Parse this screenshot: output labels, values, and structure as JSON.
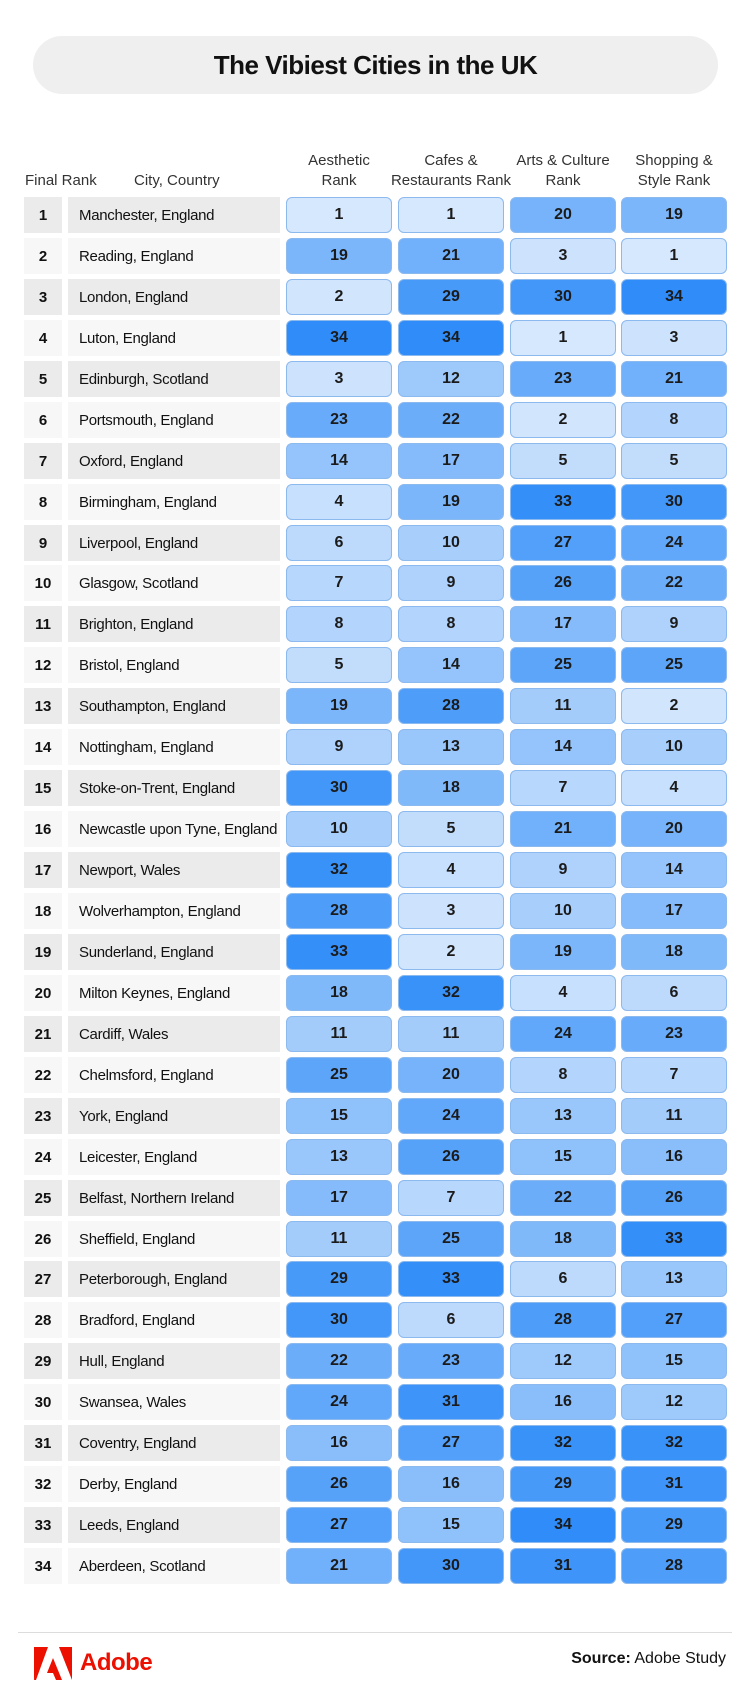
{
  "title": "The Vibiest Cities in the UK",
  "headers": {
    "final_rank": "Final Rank",
    "city": "City, Country",
    "aesthetic": [
      "Aesthetic",
      "Rank"
    ],
    "cafes": [
      "Cafes &",
      "Restaurants Rank"
    ],
    "arts": [
      "Arts & Culture",
      "Rank"
    ],
    "shopping": [
      "Shopping &",
      "Style Rank"
    ]
  },
  "footer": {
    "brand": "Adobe",
    "source_label": "Source:",
    "source_value": "Adobe Study"
  },
  "colors": {
    "lightest": "#d6e8fd",
    "darkest": "#2f8cf8"
  },
  "chart_data": {
    "type": "table",
    "title": "The Vibiest Cities in the UK",
    "columns": [
      "Final Rank",
      "City, Country",
      "Aesthetic Rank",
      "Cafes & Restaurants Rank",
      "Arts & Culture Rank",
      "Shopping & Style Rank"
    ],
    "rows": [
      {
        "rank": "1",
        "city": "Manchester, England",
        "values": [
          1,
          1,
          20,
          19
        ]
      },
      {
        "rank": "2",
        "city": "Reading, England",
        "values": [
          19,
          21,
          3,
          1
        ]
      },
      {
        "rank": "3",
        "city": "London, England",
        "values": [
          2,
          29,
          30,
          34
        ]
      },
      {
        "rank": "4",
        "city": "Luton, England",
        "values": [
          34,
          34,
          1,
          3
        ]
      },
      {
        "rank": "5",
        "city": "Edinburgh, Scotland",
        "values": [
          3,
          12,
          23,
          21
        ]
      },
      {
        "rank": "6",
        "city": "Portsmouth, England",
        "values": [
          23,
          22,
          2,
          8
        ]
      },
      {
        "rank": "7",
        "city": "Oxford, England",
        "values": [
          14,
          17,
          5,
          5
        ]
      },
      {
        "rank": "8",
        "city": "Birmingham, England",
        "values": [
          4,
          19,
          33,
          30
        ]
      },
      {
        "rank": "9",
        "city": "Liverpool, England",
        "values": [
          6,
          10,
          27,
          24
        ]
      },
      {
        "rank": "10",
        "city": "Glasgow, Scotland",
        "values": [
          7,
          9,
          26,
          22
        ]
      },
      {
        "rank": "11",
        "city": "Brighton, England",
        "values": [
          8,
          8,
          17,
          9
        ]
      },
      {
        "rank": "12",
        "city": "Bristol, England",
        "values": [
          5,
          14,
          25,
          25
        ]
      },
      {
        "rank": "13",
        "city": "Southampton, England",
        "values": [
          19,
          28,
          11,
          2
        ]
      },
      {
        "rank": "14",
        "city": "Nottingham, England",
        "values": [
          9,
          13,
          14,
          10
        ]
      },
      {
        "rank": "15",
        "city": "Stoke-on-Trent, England",
        "values": [
          30,
          18,
          7,
          4
        ]
      },
      {
        "rank": "16",
        "city": "Newcastle upon Tyne, England",
        "values": [
          10,
          5,
          21,
          20
        ]
      },
      {
        "rank": "17",
        "city": "Newport, Wales",
        "values": [
          32,
          4,
          9,
          14
        ]
      },
      {
        "rank": "18",
        "city": "Wolverhampton, England",
        "values": [
          28,
          3,
          10,
          17
        ]
      },
      {
        "rank": "19",
        "city": "Sunderland, England",
        "values": [
          33,
          2,
          19,
          18
        ]
      },
      {
        "rank": "20",
        "city": "Milton Keynes, England",
        "values": [
          18,
          32,
          4,
          6
        ]
      },
      {
        "rank": "21",
        "city": "Cardiff, Wales",
        "values": [
          11,
          11,
          24,
          23
        ]
      },
      {
        "rank": "22",
        "city": "Chelmsford, England",
        "values": [
          25,
          20,
          8,
          7
        ]
      },
      {
        "rank": "23",
        "city": "York, England",
        "values": [
          15,
          24,
          13,
          11
        ]
      },
      {
        "rank": "24",
        "city": "Leicester, England",
        "values": [
          13,
          26,
          15,
          16
        ]
      },
      {
        "rank": "25",
        "city": "Belfast, Northern Ireland",
        "values": [
          17,
          7,
          22,
          26
        ]
      },
      {
        "rank": "26",
        "city": "Sheffield, England",
        "values": [
          11,
          25,
          18,
          33
        ]
      },
      {
        "rank": "27",
        "city": "Peterborough, England",
        "values": [
          29,
          33,
          6,
          13
        ]
      },
      {
        "rank": "28",
        "city": "Bradford, England",
        "values": [
          30,
          6,
          28,
          27
        ]
      },
      {
        "rank": "29",
        "city": "Hull, England",
        "values": [
          22,
          23,
          12,
          15
        ]
      },
      {
        "rank": "30",
        "city": "Swansea, Wales",
        "values": [
          24,
          31,
          16,
          12
        ]
      },
      {
        "rank": "31",
        "city": "Coventry, England",
        "values": [
          16,
          27,
          32,
          32
        ]
      },
      {
        "rank": "32",
        "city": "Derby, England",
        "values": [
          26,
          16,
          29,
          31
        ]
      },
      {
        "rank": "33",
        "city": "Leeds, England",
        "values": [
          27,
          15,
          34,
          29
        ]
      },
      {
        "rank": "34",
        "city": "Aberdeen, Scotland",
        "values": [
          21,
          30,
          31,
          28
        ]
      }
    ]
  }
}
